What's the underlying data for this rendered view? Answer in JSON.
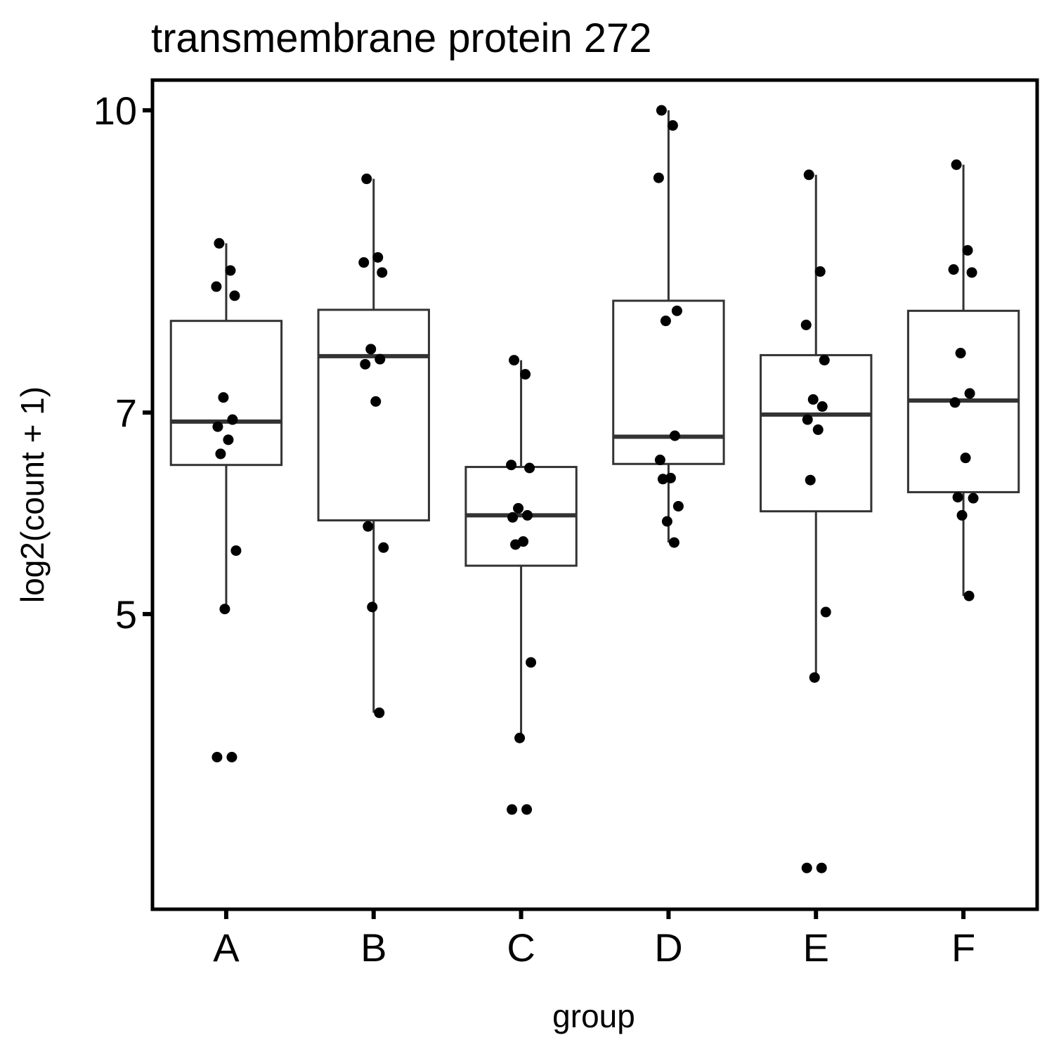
{
  "chart_data": {
    "type": "box",
    "title": "transmembrane protein 272",
    "xlabel": "group",
    "ylabel": "log2(count + 1)",
    "ylim": [
      2.07,
      10.3
    ],
    "yticks": [
      5,
      7,
      10
    ],
    "grid": false,
    "legend": "none",
    "categories": [
      "A",
      "B",
      "C",
      "D",
      "E",
      "F"
    ],
    "boxes": [
      {
        "group": "A",
        "lower_whisker": 5.05,
        "q1": 6.48,
        "median": 6.91,
        "q3": 7.91,
        "upper_whisker": 8.68
      },
      {
        "group": "B",
        "lower_whisker": 4.02,
        "q1": 5.93,
        "median": 7.56,
        "q3": 8.02,
        "upper_whisker": 9.32
      },
      {
        "group": "C",
        "lower_whisker": 3.77,
        "q1": 5.48,
        "median": 5.98,
        "q3": 6.46,
        "upper_whisker": 7.52
      },
      {
        "group": "D",
        "lower_whisker": 5.71,
        "q1": 6.49,
        "median": 6.76,
        "q3": 8.11,
        "upper_whisker": 10.0
      },
      {
        "group": "E",
        "lower_whisker": 4.37,
        "q1": 6.02,
        "median": 6.98,
        "q3": 7.57,
        "upper_whisker": 9.36
      },
      {
        "group": "F",
        "lower_whisker": 5.18,
        "q1": 6.21,
        "median": 7.12,
        "q3": 8.01,
        "upper_whisker": 9.46
      }
    ],
    "points": [
      {
        "group": "A",
        "y": [
          8.68,
          8.41,
          8.25,
          8.16,
          7.15,
          6.93,
          6.86,
          6.73,
          6.59,
          5.63,
          5.05,
          3.58,
          3.58
        ]
      },
      {
        "group": "B",
        "y": [
          9.32,
          8.54,
          8.49,
          8.39,
          7.63,
          7.53,
          7.48,
          7.11,
          5.87,
          5.66,
          5.07,
          4.02
        ]
      },
      {
        "group": "C",
        "y": [
          7.52,
          7.38,
          6.48,
          6.45,
          6.05,
          5.98,
          5.96,
          5.72,
          5.69,
          4.52,
          3.77,
          3.06,
          3.06
        ]
      },
      {
        "group": "D",
        "y": [
          10.0,
          9.85,
          9.33,
          8.01,
          7.91,
          6.77,
          6.53,
          6.35,
          6.34,
          6.07,
          5.92,
          5.71
        ]
      },
      {
        "group": "E",
        "y": [
          9.36,
          8.4,
          7.87,
          7.52,
          7.13,
          7.06,
          6.93,
          6.83,
          6.33,
          5.02,
          4.37,
          2.48,
          2.48
        ]
      },
      {
        "group": "F",
        "y": [
          9.46,
          8.61,
          8.42,
          8.39,
          7.59,
          7.19,
          7.1,
          6.55,
          6.16,
          6.15,
          5.98,
          5.18
        ]
      }
    ]
  }
}
